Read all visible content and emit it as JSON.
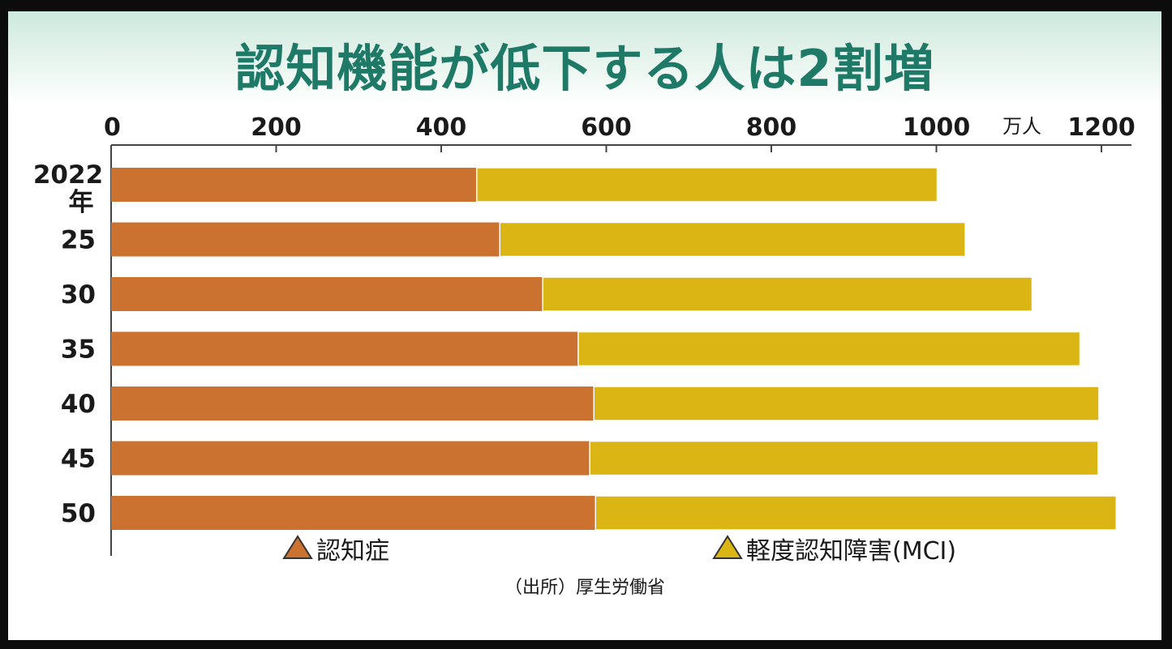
{
  "chart_data": {
    "type": "bar",
    "orientation": "horizontal",
    "stacked": true,
    "title": "認知機能が低下する人は2割増",
    "unit": "万人",
    "categories": [
      "2022年",
      "25",
      "30",
      "35",
      "40",
      "45",
      "50"
    ],
    "series": [
      {
        "name": "認知症",
        "values": [
          443,
          471,
          523,
          566,
          585,
          580,
          587
        ],
        "color": "#cc7230"
      },
      {
        "name": "軽度認知障害(MCI)",
        "values": [
          558,
          564,
          593,
          608,
          612,
          616,
          631
        ],
        "color": "#dbb514"
      }
    ],
    "xlim": [
      0,
      1200
    ],
    "xticks": [
      0,
      200,
      400,
      600,
      800,
      1000,
      1200
    ],
    "legend_position": "bottom",
    "source": "（出所）厚生労働省",
    "grid": false
  }
}
